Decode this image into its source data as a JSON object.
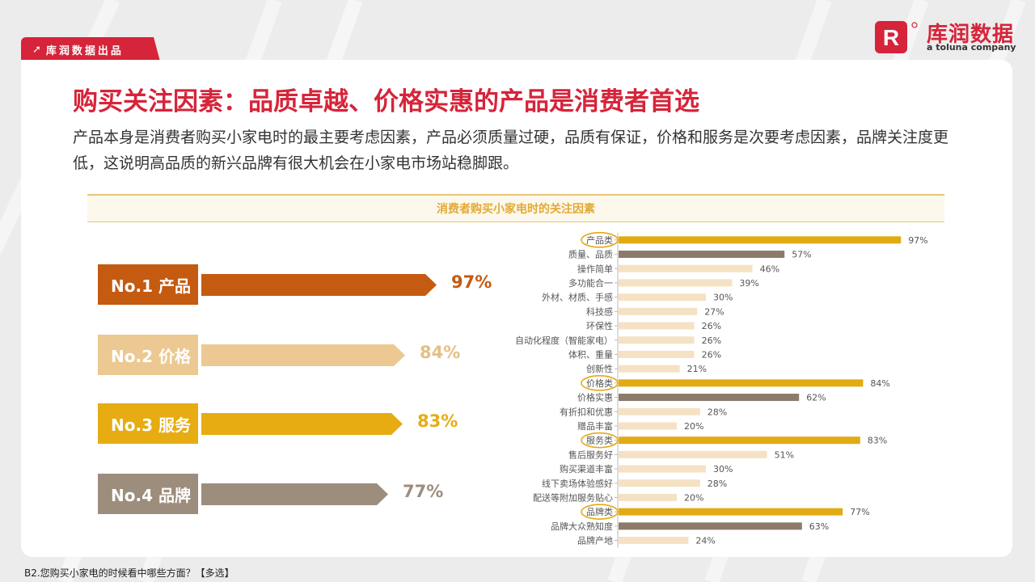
{
  "header": {
    "tag_label": "库润数据出品",
    "tag_icon": "arrow-up-right-icon",
    "logo_cn": "库润数据",
    "logo_en": "a toluna company",
    "logo_mark": "R",
    "brand_color": "#d6243a"
  },
  "title": "购买关注因素：品质卓越、价格实惠的产品是消费者首选",
  "description": "产品本身是消费者购买小家电时的最主要考虑因素，产品必须质量过硬，品质有保证，价格和服务是次要考虑因素，品牌关注度更低，这说明高品质的新兴品牌有很大机会在小家电市场站稳脚跟。",
  "chart_title": "消费者购买小家电时的关注因素",
  "ranking": [
    {
      "label": "No.1 产品",
      "value": 97,
      "pct": "97%",
      "color": "#c55a11",
      "text_color": "#c55a11"
    },
    {
      "label": "No.2 价格",
      "value": 84,
      "pct": "84%",
      "color": "#ecc992",
      "text_color": "#e5bf86"
    },
    {
      "label": "No.3 服务",
      "value": 83,
      "pct": "83%",
      "color": "#e6ac12",
      "text_color": "#e6ac12"
    },
    {
      "label": "No.4 品牌",
      "value": 77,
      "pct": "77%",
      "color": "#9d8d7d",
      "text_color": "#9d8d7d"
    }
  ],
  "chart_data": {
    "type": "bar",
    "orientation": "horizontal",
    "title": "消费者购买小家电时的关注因素",
    "xlabel": "",
    "ylabel": "",
    "xlim": [
      0,
      100
    ],
    "colors": {
      "category": "#e2ab14",
      "top_item": "#8c7b6b",
      "item": "#f5e2c4"
    },
    "categories": [
      "产品类",
      "质量、品质",
      "操作简单",
      "多功能合一",
      "外材、材质、手感",
      "科技感",
      "环保性",
      "自动化程度（智能家电）",
      "体积、重量",
      "创新性",
      "价格类",
      "价格实惠",
      "有折扣和优惠",
      "赠品丰富",
      "服务类",
      "售后服务好",
      "购买渠道丰富",
      "线下卖场体验感好",
      "配送等附加服务贴心",
      "品牌类",
      "品牌大众熟知度",
      "品牌产地"
    ],
    "values": [
      97,
      57,
      46,
      39,
      30,
      27,
      26,
      26,
      26,
      21,
      84,
      62,
      28,
      20,
      83,
      51,
      30,
      28,
      20,
      77,
      63,
      24
    ],
    "labels": [
      "97%",
      "57%",
      "46%",
      "39%",
      "30%",
      "27%",
      "26%",
      "26%",
      "26%",
      "21%",
      "84%",
      "62%",
      "28%",
      "20%",
      "83%",
      "51%",
      "30%",
      "28%",
      "20%",
      "77%",
      "63%",
      "24%"
    ],
    "kinds": [
      "category",
      "top",
      "item",
      "item",
      "item",
      "item",
      "item",
      "item",
      "item",
      "item",
      "category",
      "top",
      "item",
      "item",
      "category",
      "item",
      "item",
      "item",
      "item",
      "category",
      "top",
      "item"
    ]
  },
  "footnote": "B2.您购买小家电的时候看中哪些方面？【多选】"
}
